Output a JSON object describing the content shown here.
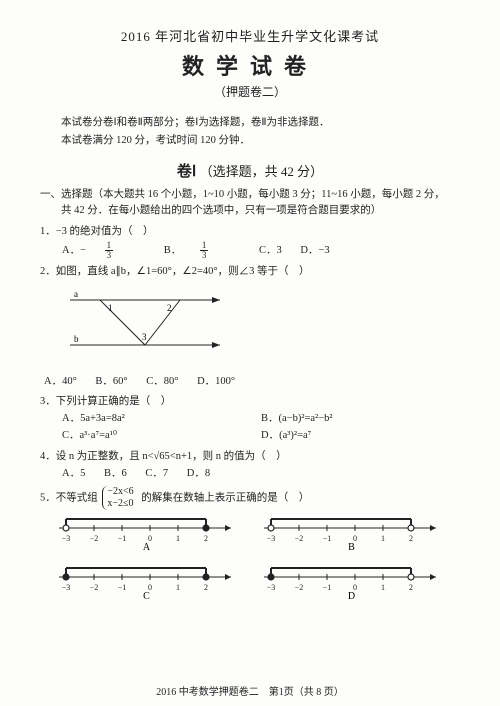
{
  "header": {
    "line1": "2016 年河北省初中毕业生升学文化课考试",
    "line2": "数学试卷",
    "line3": "（押题卷二）"
  },
  "intro": {
    "l1": "本试卷分卷Ⅰ和卷Ⅱ两部分；卷Ⅰ为选择题，卷Ⅱ为非选择题．",
    "l2": "本试卷满分 120 分，考试时间 120 分钟．"
  },
  "section1": {
    "label": "卷Ⅰ",
    "desc": "（选择题，共 42 分）"
  },
  "mc_head": {
    "l1": "一、选择题（本大题共 16 个小题，1~10 小题，每小题 3 分；11~16 小题，每小题 2 分，",
    "l2": "共 42 分．在每小题给出的四个选项中，只有一项是符合题目要求的）"
  },
  "q1": {
    "stem": "1．−3 的绝对值为（　）",
    "A": "A．−",
    "B": "B．",
    "C": "C．3",
    "D": "D．−3",
    "frac_n": "1",
    "frac_d": "3"
  },
  "q2": {
    "stem": "2．如图，直线 a∥b，∠1=60°，∠2=40°，则∠3 等于（　）",
    "A": "A．40°",
    "B": "B．60°",
    "C": "C．80°",
    "D": "D．100°",
    "labels": {
      "a": "a",
      "b": "b",
      "n1": "1",
      "n2": "2",
      "n3": "3"
    }
  },
  "q3": {
    "stem": "3．下列计算正确的是（　）",
    "A": "A．5a+3a=8a²",
    "B": "B．(a−b)²=a²−b²",
    "C": "C．a³·a⁷=a¹⁰",
    "D": "D．(a³)²=a⁷"
  },
  "q4": {
    "stem": "4．设 n 为正整数，且 n<√65<n+1，则 n 的值为（　）",
    "A": "A．5",
    "B": "B．6",
    "C": "C．7",
    "D": "D．8"
  },
  "q5": {
    "stem_a": "5．不等式组",
    "sys1": "−2x<6",
    "sys2": "x−2≤0",
    "stem_b": "的解集在数轴上表示正确的是（　）",
    "ticks": [
      "−3",
      "−2",
      "−1",
      "0",
      "1",
      "2"
    ],
    "labels": {
      "A": "A",
      "B": "B",
      "C": "C",
      "D": "D"
    }
  },
  "footer": "2016 中考数学押题卷二　第1页（共 8 页）",
  "colors": {
    "ink": "#222222",
    "paper": "#fdfdfb"
  }
}
